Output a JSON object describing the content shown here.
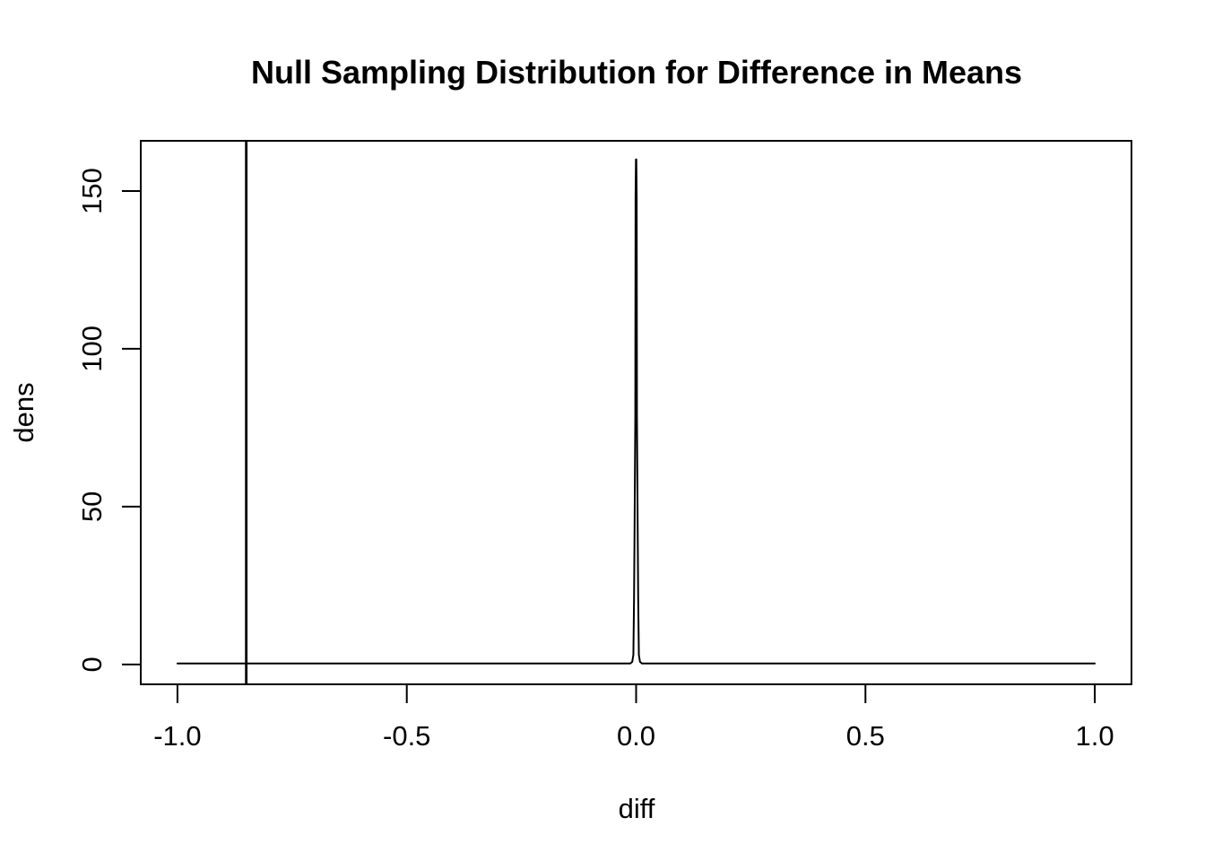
{
  "title": "Null Sampling Distribution for Difference in Means",
  "chart_data": {
    "type": "line",
    "title": "Null Sampling Distribution for Difference in Means",
    "xlabel": "diff",
    "ylabel": "dens",
    "xlim": [
      -1.08,
      1.08
    ],
    "ylim": [
      -6.3,
      165.9
    ],
    "x_ticks": [
      -1.0,
      -0.5,
      0.0,
      0.5,
      1.0
    ],
    "x_tick_labels": [
      "-1.0",
      "-0.5",
      "0.0",
      "0.5",
      "1.0"
    ],
    "y_ticks": [
      0,
      50,
      100,
      150
    ],
    "y_tick_labels": [
      "0",
      "50",
      "100",
      "150"
    ],
    "grid": "off",
    "legend": "none",
    "background_color": "#FFFFFF",
    "line_color": "#000000",
    "peak": {
      "x": 0.0,
      "density": 160
    },
    "observed_vline_x": -0.85,
    "series": [
      {
        "name": "null-density-curve",
        "points": [
          [
            -1.0,
            0.3
          ],
          [
            -0.02,
            0.3
          ],
          [
            -0.013,
            0.3
          ],
          [
            -0.0085,
            0.8
          ],
          [
            -0.006,
            3
          ],
          [
            -0.0045,
            21
          ],
          [
            -0.0032,
            47
          ],
          [
            -0.0018,
            78
          ],
          [
            -0.0012,
            148
          ],
          [
            -0.0004,
            160
          ],
          [
            0.0004,
            160
          ],
          [
            0.0012,
            148
          ],
          [
            0.0018,
            78
          ],
          [
            0.0032,
            47
          ],
          [
            0.0045,
            21
          ],
          [
            0.006,
            3
          ],
          [
            0.0085,
            0.8
          ],
          [
            0.013,
            0.3
          ],
          [
            0.02,
            0.3
          ],
          [
            1.0,
            0.3
          ]
        ]
      }
    ]
  }
}
